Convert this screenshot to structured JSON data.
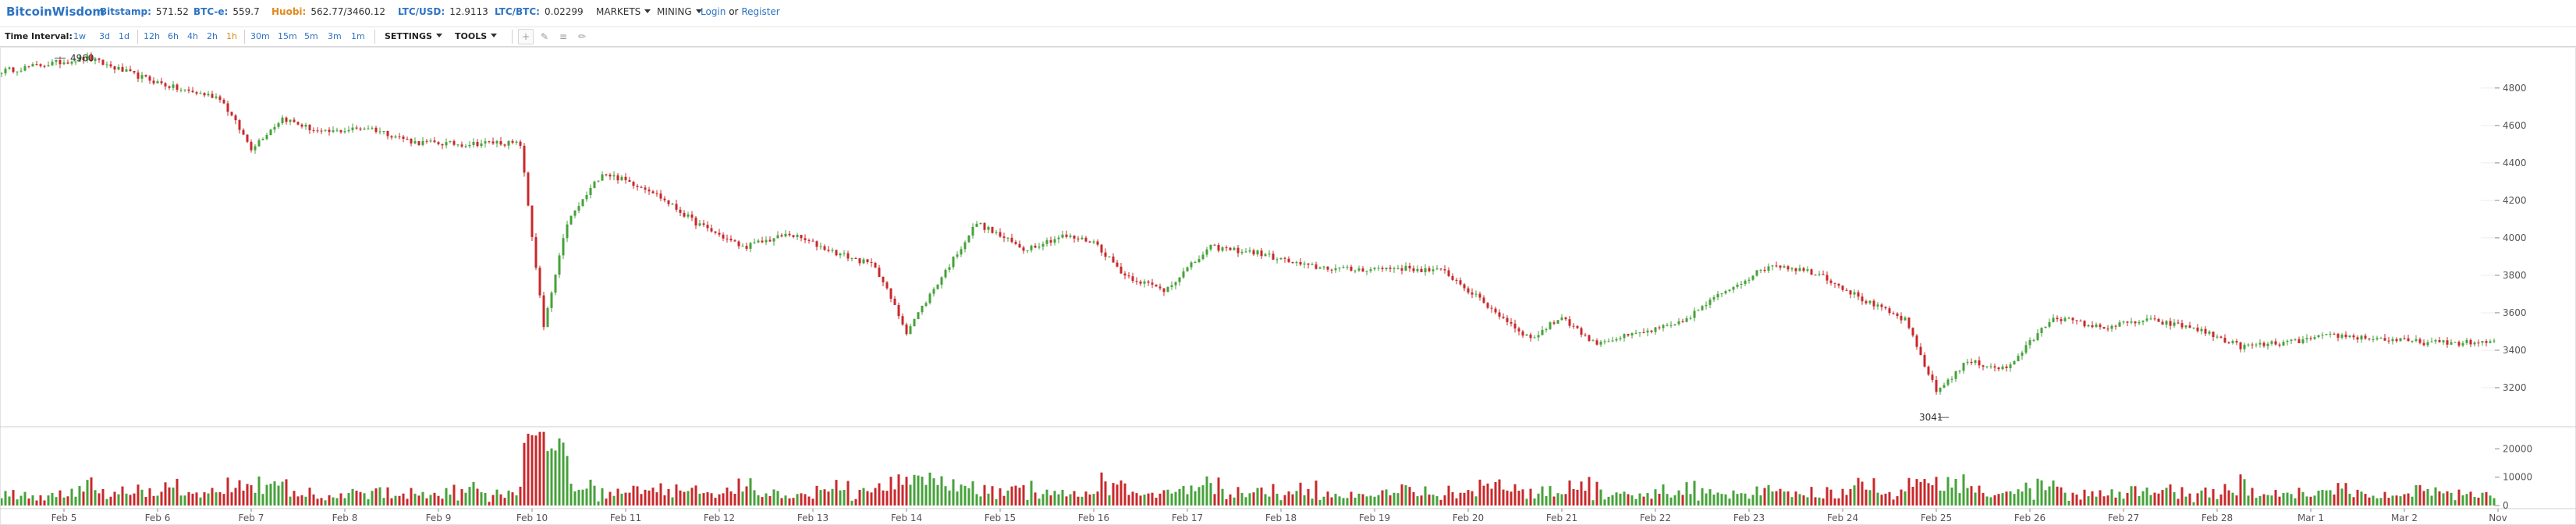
{
  "header": {
    "logo": "BitcoinWisdom",
    "tickers": [
      {
        "exchange": "Bitstamp:",
        "value": "571.52"
      },
      {
        "exchange": "BTC-e:",
        "value": "559.7"
      },
      {
        "exchange": "Huobi:",
        "value": "562.77/3460.12"
      },
      {
        "exchange": "LTC/USD:",
        "value": "12.9113"
      },
      {
        "exchange": "LTC/BTC:",
        "value": "0.02299"
      }
    ],
    "menus": [
      "MARKETS",
      "MINING"
    ],
    "login": "Login",
    "or": "or",
    "register": "Register"
  },
  "toolbar": {
    "label": "Time Interval:",
    "intervals": [
      "1w",
      "3d",
      "1d",
      "12h",
      "6h",
      "4h",
      "2h",
      "1h",
      "30m",
      "15m",
      "5m",
      "3m",
      "1m"
    ],
    "active_interval": "1h",
    "settings": "SETTINGS",
    "tools": "TOOLS",
    "tool_icons": [
      "crosshair-icon",
      "pencil-icon",
      "lines-icon",
      "brush-icon"
    ]
  },
  "colors": {
    "up": "#46a23a",
    "down": "#c8282b",
    "accent": "#2d73c3",
    "active": "#e08a1e"
  },
  "chart_data": {
    "type": "candlestick",
    "price_axis": {
      "ticks": [
        3200,
        3400,
        3600,
        3800,
        4000,
        4200,
        4400,
        4600,
        4800
      ],
      "range": [
        3000,
        5020
      ]
    },
    "volume_axis": {
      "ticks": [
        0,
        10000,
        20000
      ],
      "labels": [
        "0",
        "10000",
        "20000"
      ],
      "range": [
        0,
        27000
      ]
    },
    "dates": [
      "Feb 5",
      "Feb 6",
      "Feb 7",
      "Feb 8",
      "Feb 9",
      "Feb 10",
      "Feb 11",
      "Feb 12",
      "Feb 13",
      "Feb 14",
      "Feb 15",
      "Feb 16",
      "Feb 17",
      "Feb 18",
      "Feb 19",
      "Feb 20",
      "Feb 21",
      "Feb 22",
      "Feb 23",
      "Feb 24",
      "Feb 25",
      "Feb 26",
      "Feb 27",
      "Feb 28",
      "Mar 1",
      "Mar 2",
      "Nov"
    ],
    "annotations": [
      {
        "label": "4960",
        "date": "Feb 5",
        "price": 4960
      },
      {
        "label": "3041",
        "date": "Feb 25",
        "price": 3041
      }
    ],
    "price_path": [
      [
        "Feb 5",
        4890
      ],
      [
        "Feb 5",
        4960
      ],
      [
        "Feb 6",
        4870
      ],
      [
        "Feb 6",
        4790
      ],
      [
        "Feb 7",
        4750
      ],
      [
        "Feb 7",
        4480
      ],
      [
        "Feb 7",
        4640
      ],
      [
        "Feb 8",
        4560
      ],
      [
        "Feb 8",
        4590
      ],
      [
        "Feb 9",
        4510
      ],
      [
        "Feb 9",
        4500
      ],
      [
        "Feb 10",
        4510
      ],
      [
        "Feb 10",
        4500
      ],
      [
        "Feb 10",
        3520
      ],
      [
        "Feb 10",
        4080
      ],
      [
        "Feb 11",
        4350
      ],
      [
        "Feb 11",
        4260
      ],
      [
        "Feb 12",
        4080
      ],
      [
        "Feb 12",
        3950
      ],
      [
        "Feb 13",
        4020
      ],
      [
        "Feb 13",
        3920
      ],
      [
        "Feb 14",
        3850
      ],
      [
        "Feb 14",
        3500
      ],
      [
        "Feb 14",
        3760
      ],
      [
        "Feb 15",
        4080
      ],
      [
        "Feb 15",
        3940
      ],
      [
        "Feb 16",
        4010
      ],
      [
        "Feb 16",
        3980
      ],
      [
        "Feb 16",
        3800
      ],
      [
        "Feb 17",
        3720
      ],
      [
        "Feb 17",
        3950
      ],
      [
        "Feb 18",
        3920
      ],
      [
        "Feb 18",
        3850
      ],
      [
        "Feb 19",
        3830
      ],
      [
        "Feb 19",
        3840
      ],
      [
        "Feb 20",
        3820
      ],
      [
        "Feb 20",
        3620
      ],
      [
        "Feb 21",
        3460
      ],
      [
        "Feb 21",
        3580
      ],
      [
        "Feb 21",
        3440
      ],
      [
        "Feb 22",
        3480
      ],
      [
        "Feb 22",
        3540
      ],
      [
        "Feb 23",
        3720
      ],
      [
        "Feb 23",
        3860
      ],
      [
        "Feb 24",
        3810
      ],
      [
        "Feb 24",
        3660
      ],
      [
        "Feb 25",
        3560
      ],
      [
        "Feb 25",
        3180
      ],
      [
        "Feb 25",
        3340
      ],
      [
        "Feb 26",
        3300
      ],
      [
        "Feb 26",
        3580
      ],
      [
        "Feb 27",
        3520
      ],
      [
        "Feb 27",
        3560
      ],
      [
        "Feb 28",
        3520
      ],
      [
        "Feb 28",
        3420
      ],
      [
        "Mar 1",
        3440
      ],
      [
        "Mar 1",
        3480
      ],
      [
        "Mar 2",
        3460
      ],
      [
        "Mar 2",
        3440
      ]
    ]
  }
}
